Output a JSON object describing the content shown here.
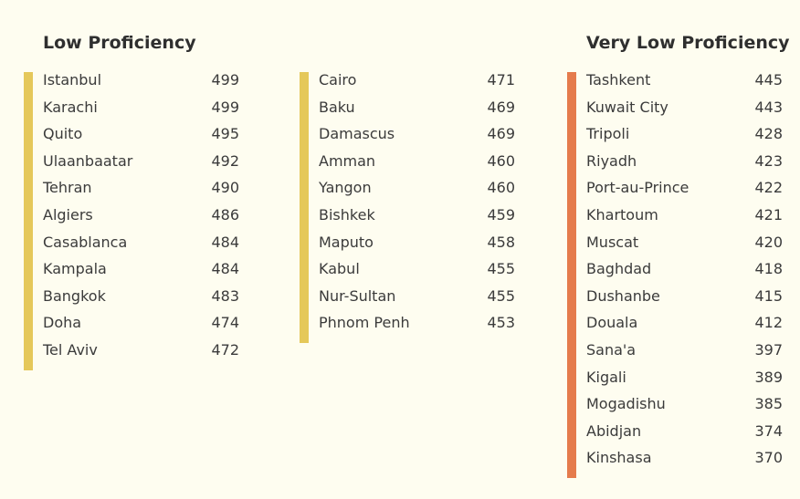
{
  "colors": {
    "background": "#fefdf0",
    "low_bar": "#e5c85a",
    "very_low_bar": "#e57b4c",
    "text": "#3b3b3b",
    "heading": "#2f2f2f"
  },
  "headings": {
    "low": "Low Proficiency",
    "very_low": "Very Low Proficiency"
  },
  "columns": [
    {
      "group": "low",
      "rows": [
        {
          "city": "Istanbul",
          "score": "499"
        },
        {
          "city": "Karachi",
          "score": "499"
        },
        {
          "city": "Quito",
          "score": "495"
        },
        {
          "city": "Ulaanbaatar",
          "score": "492"
        },
        {
          "city": "Tehran",
          "score": "490"
        },
        {
          "city": "Algiers",
          "score": "486"
        },
        {
          "city": "Casablanca",
          "score": "484"
        },
        {
          "city": "Kampala",
          "score": "484"
        },
        {
          "city": "Bangkok",
          "score": "483"
        },
        {
          "city": "Doha",
          "score": "474"
        },
        {
          "city": "Tel Aviv",
          "score": "472"
        }
      ]
    },
    {
      "group": "low",
      "rows": [
        {
          "city": "Cairo",
          "score": "471"
        },
        {
          "city": "Baku",
          "score": "469"
        },
        {
          "city": "Damascus",
          "score": "469"
        },
        {
          "city": "Amman",
          "score": "460"
        },
        {
          "city": "Yangon",
          "score": "460"
        },
        {
          "city": "Bishkek",
          "score": "459"
        },
        {
          "city": "Maputo",
          "score": "458"
        },
        {
          "city": "Kabul",
          "score": "455"
        },
        {
          "city": "Nur-Sultan",
          "score": "455"
        },
        {
          "city": "Phnom Penh",
          "score": "453"
        }
      ]
    },
    {
      "group": "very_low",
      "rows": [
        {
          "city": "Tashkent",
          "score": "445"
        },
        {
          "city": "Kuwait City",
          "score": "443"
        },
        {
          "city": "Tripoli",
          "score": "428"
        },
        {
          "city": "Riyadh",
          "score": "423"
        },
        {
          "city": "Port-au-Prince",
          "score": "422"
        },
        {
          "city": "Khartoum",
          "score": "421"
        },
        {
          "city": "Muscat",
          "score": "420"
        },
        {
          "city": "Baghdad",
          "score": "418"
        },
        {
          "city": "Dushanbe",
          "score": "415"
        },
        {
          "city": "Douala",
          "score": "412"
        },
        {
          "city": "Sana'a",
          "score": "397"
        },
        {
          "city": "Kigali",
          "score": "389"
        },
        {
          "city": "Mogadishu",
          "score": "385"
        },
        {
          "city": "Abidjan",
          "score": "374"
        },
        {
          "city": "Kinshasa",
          "score": "370"
        }
      ]
    }
  ]
}
